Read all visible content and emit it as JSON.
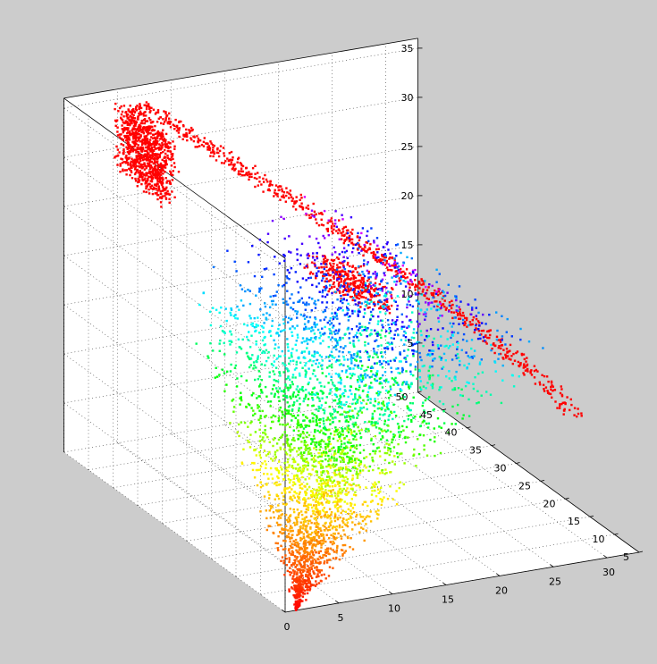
{
  "chart_data": {
    "type": "scatter",
    "title": "",
    "xlabel": "",
    "ylabel": "",
    "zlabel": "",
    "grid": true,
    "background_color": "#cccccc",
    "axes_color": "#ffffff",
    "x_ticks": [
      "0",
      "5",
      "10",
      "15",
      "20",
      "25",
      "30"
    ],
    "y_ticks": [
      "5",
      "10",
      "15",
      "20",
      "25",
      "30",
      "35",
      "40",
      "45",
      "50"
    ],
    "z_ticks": [
      "5",
      "10",
      "15",
      "20",
      "25",
      "30",
      "35"
    ],
    "xlim": [
      0,
      33
    ],
    "ylim": [
      5,
      50
    ],
    "zlim": [
      0,
      36
    ],
    "colormap": [
      "#ff0000",
      "#ff8000",
      "#ffff00",
      "#00ff00",
      "#00ffff",
      "#0000ff",
      "#ff00ff"
    ],
    "series": [
      {
        "color": "#ff0000",
        "regions": [
          {
            "shape": "band",
            "x": [
              31,
              5
            ],
            "y": [
              14,
              46
            ],
            "z": [
              11,
              36
            ],
            "count": 700
          },
          {
            "shape": "patch",
            "x": [
              8,
              4
            ],
            "y": [
              45,
              48
            ],
            "z": [
              25,
              36
            ],
            "count": 900
          },
          {
            "shape": "patch",
            "x": [
              22,
              18
            ],
            "y": [
              30,
              40
            ],
            "z": [
              17,
              21
            ],
            "count": 350
          }
        ]
      },
      {
        "color_by": "z",
        "regions": [
          {
            "shape": "cone",
            "x": [
              0,
              28
            ],
            "y": [
              5,
              45
            ],
            "z": [
              0,
              25
            ],
            "count": 3800
          }
        ]
      }
    ]
  }
}
